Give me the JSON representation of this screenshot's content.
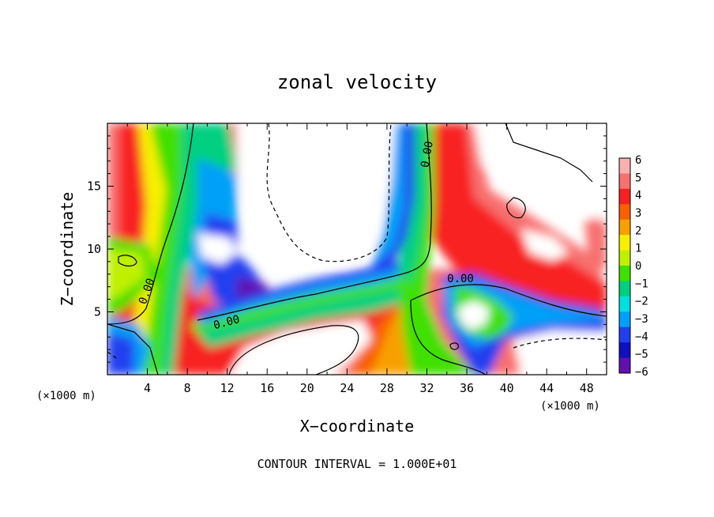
{
  "chart_data": {
    "type": "heatmap",
    "title": "zonal velocity",
    "xlabel": "X−coordinate",
    "ylabel": "Z−coordinate",
    "x_unit": "(×1000 m)",
    "z_unit": "(×1000 m)",
    "xlim": [
      0,
      50
    ],
    "ylim": [
      0,
      20
    ],
    "x_ticks": [
      "4",
      "8",
      "12",
      "16",
      "20",
      "24",
      "28",
      "32",
      "36",
      "40",
      "44",
      "48"
    ],
    "y_ticks": [
      "5",
      "10",
      "15"
    ],
    "footer": "CONTOUR INTERVAL = 1.000E+01",
    "colorbar": {
      "labels": [
        "6",
        "5",
        "4",
        "3",
        "2",
        "1",
        "0",
        "−1",
        "−2",
        "−3",
        "−4",
        "−5",
        "−6"
      ],
      "colors": [
        "#f8b0b0",
        "#f87070",
        "#f82020",
        "#f86000",
        "#f8a000",
        "#f8f000",
        "#c0f000",
        "#40e000",
        "#00d080",
        "#00e0e0",
        "#00a0f8",
        "#2040f0",
        "#1010c0",
        "#6010b0"
      ]
    },
    "contour_labels": [
      "0.00",
      "0.00",
      "0.00",
      "0.00"
    ]
  }
}
